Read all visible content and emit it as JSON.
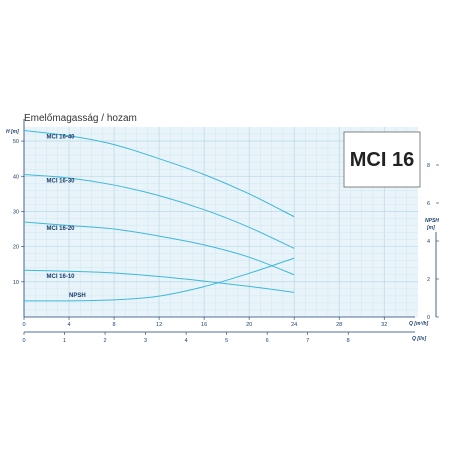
{
  "chart_data": {
    "type": "line",
    "title": "Emelőmagasság / hozam",
    "badge": "MCI 16",
    "y_left": {
      "label": "H [m]",
      "ticks": [
        10,
        20,
        30,
        40,
        50
      ],
      "range": [
        0,
        54
      ]
    },
    "y_right": {
      "label_top": "NPSH",
      "label_bottom": "[m]",
      "ticks": [
        2,
        4,
        6,
        8
      ],
      "range": [
        0,
        10
      ]
    },
    "x_top": {
      "label": "Q [m³/h]",
      "ticks": [
        0,
        4,
        8,
        12,
        16,
        20,
        24,
        28,
        32
      ],
      "range": [
        0,
        35
      ]
    },
    "x_bottom": {
      "label": "Q [l/s]",
      "ticks": [
        0,
        1,
        2,
        3,
        4,
        5,
        6,
        7,
        8
      ]
    },
    "grid": true,
    "series": [
      {
        "name": "MCI 16-40",
        "axis": "left",
        "x": [
          0,
          4,
          8,
          12,
          16,
          20,
          24
        ],
        "y": [
          53,
          51.5,
          49,
          45,
          40.5,
          35,
          28.5
        ]
      },
      {
        "name": "MCI 16-30",
        "axis": "left",
        "x": [
          0,
          4,
          8,
          12,
          16,
          20,
          24
        ],
        "y": [
          40.5,
          39.5,
          37.5,
          34.5,
          30.5,
          25.5,
          19.5
        ]
      },
      {
        "name": "MCI 16-20",
        "axis": "left",
        "x": [
          0,
          4,
          8,
          12,
          16,
          20,
          24
        ],
        "y": [
          27,
          26,
          25,
          23,
          20.5,
          17,
          12
        ]
      },
      {
        "name": "MCI 16-10",
        "axis": "left",
        "x": [
          0,
          4,
          8,
          12,
          16,
          20,
          24
        ],
        "y": [
          13.3,
          13,
          12.5,
          11.5,
          10.2,
          8.7,
          7
        ]
      },
      {
        "name": "NPSH",
        "axis": "right",
        "x": [
          0,
          4,
          8,
          12,
          16,
          20,
          24
        ],
        "y": [
          0.85,
          0.85,
          0.9,
          1.1,
          1.6,
          2.3,
          3.1
        ]
      }
    ]
  }
}
